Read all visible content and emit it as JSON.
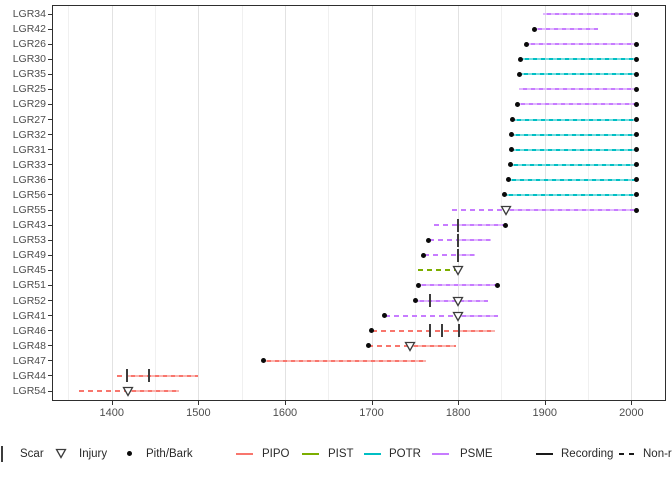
{
  "chart_data": {
    "type": "line",
    "x_axis": {
      "range": [
        1331,
        2040
      ],
      "ticks": [
        1400,
        1500,
        1600,
        1700,
        1800,
        1900,
        2000
      ],
      "tick_labels": [
        "1400",
        "1500",
        "1600",
        "1700",
        "1800",
        "1900",
        "2000"
      ],
      "minor_gridlines": [
        1350,
        1450,
        1550,
        1650,
        1750,
        1850,
        1950
      ]
    },
    "species_colors": {
      "PIPO": "#F8766D",
      "PIST": "#7CAE00",
      "POTR": "#00BFC4",
      "PSME": "#C77CFF"
    },
    "marker_colors": {
      "scar": "#3c3c3c",
      "injury_stroke": "#3c3c3c",
      "pith_bark": "#0a0a0a"
    },
    "series": [
      {
        "name": "LGR34",
        "species": "PSME",
        "segments": [
          {
            "from": 1898,
            "to": 2006,
            "type": "recording"
          }
        ],
        "scars": [],
        "injuries": [],
        "dots": [
          2006
        ]
      },
      {
        "name": "LGR42",
        "species": "PSME",
        "segments": [
          {
            "from": 1888,
            "to": 1962,
            "type": "recording"
          }
        ],
        "scars": [],
        "injuries": [],
        "dots": [
          1888
        ]
      },
      {
        "name": "LGR26",
        "species": "PSME",
        "segments": [
          {
            "from": 1879,
            "to": 2006,
            "type": "recording"
          }
        ],
        "scars": [],
        "injuries": [],
        "dots": [
          1879,
          2006
        ]
      },
      {
        "name": "LGR30",
        "species": "POTR",
        "segments": [
          {
            "from": 1872,
            "to": 2006,
            "type": "recording"
          }
        ],
        "scars": [],
        "injuries": [],
        "dots": [
          1872,
          2006
        ]
      },
      {
        "name": "LGR35",
        "species": "POTR",
        "segments": [
          {
            "from": 1871,
            "to": 2006,
            "type": "recording"
          }
        ],
        "scars": [],
        "injuries": [],
        "dots": [
          1871,
          2006
        ]
      },
      {
        "name": "LGR25",
        "species": "PSME",
        "segments": [
          {
            "from": 1870,
            "to": 2006,
            "type": "recording"
          }
        ],
        "scars": [],
        "injuries": [],
        "dots": [
          2006
        ]
      },
      {
        "name": "LGR29",
        "species": "PSME",
        "segments": [
          {
            "from": 1868,
            "to": 2006,
            "type": "recording"
          }
        ],
        "scars": [],
        "injuries": [],
        "dots": [
          1868,
          2006
        ]
      },
      {
        "name": "LGR27",
        "species": "POTR",
        "segments": [
          {
            "from": 1863,
            "to": 2006,
            "type": "recording"
          }
        ],
        "scars": [],
        "injuries": [],
        "dots": [
          1863,
          2006
        ]
      },
      {
        "name": "LGR32",
        "species": "POTR",
        "segments": [
          {
            "from": 1862,
            "to": 2006,
            "type": "recording"
          }
        ],
        "scars": [],
        "injuries": [],
        "dots": [
          1862,
          2006
        ]
      },
      {
        "name": "LGR31",
        "species": "POTR",
        "segments": [
          {
            "from": 1862,
            "to": 2006,
            "type": "recording"
          }
        ],
        "scars": [],
        "injuries": [],
        "dots": [
          1862,
          2006
        ]
      },
      {
        "name": "LGR33",
        "species": "POTR",
        "segments": [
          {
            "from": 1860,
            "to": 2006,
            "type": "recording"
          }
        ],
        "scars": [],
        "injuries": [],
        "dots": [
          1860,
          2006
        ]
      },
      {
        "name": "LGR36",
        "species": "POTR",
        "segments": [
          {
            "from": 1858,
            "to": 2006,
            "type": "recording"
          }
        ],
        "scars": [],
        "injuries": [],
        "dots": [
          1858,
          2006
        ]
      },
      {
        "name": "LGR56",
        "species": "POTR",
        "segments": [
          {
            "from": 1854,
            "to": 2006,
            "type": "recording"
          }
        ],
        "scars": [],
        "injuries": [],
        "dots": [
          1854,
          2006
        ]
      },
      {
        "name": "LGR55",
        "species": "PSME",
        "segments": [
          {
            "from": 1793,
            "to": 1855,
            "type": "non-recording"
          },
          {
            "from": 1855,
            "to": 2006,
            "type": "recording"
          }
        ],
        "scars": [],
        "injuries": [
          1855
        ],
        "dots": [
          2006
        ]
      },
      {
        "name": "LGR43",
        "species": "PSME",
        "segments": [
          {
            "from": 1772,
            "to": 1800,
            "type": "non-recording"
          },
          {
            "from": 1800,
            "to": 1855,
            "type": "recording"
          }
        ],
        "scars": [
          1800
        ],
        "injuries": [],
        "dots": [
          1855
        ]
      },
      {
        "name": "LGR53",
        "species": "PSME",
        "segments": [
          {
            "from": 1766,
            "to": 1800,
            "type": "non-recording"
          },
          {
            "from": 1800,
            "to": 1838,
            "type": "recording"
          }
        ],
        "scars": [
          1800
        ],
        "injuries": [],
        "dots": [
          1766
        ]
      },
      {
        "name": "LGR49",
        "species": "PSME",
        "segments": [
          {
            "from": 1760,
            "to": 1800,
            "type": "non-recording"
          },
          {
            "from": 1800,
            "to": 1820,
            "type": "recording"
          }
        ],
        "scars": [
          1800
        ],
        "injuries": [],
        "dots": [
          1760
        ]
      },
      {
        "name": "LGR45",
        "species": "PIST",
        "segments": [
          {
            "from": 1754,
            "to": 1800,
            "type": "non-recording"
          }
        ],
        "scars": [],
        "injuries": [
          1800
        ],
        "dots": []
      },
      {
        "name": "LGR51",
        "species": "PSME",
        "segments": [
          {
            "from": 1754,
            "to": 1846,
            "type": "recording"
          }
        ],
        "scars": [],
        "injuries": [],
        "dots": [
          1754,
          1846
        ]
      },
      {
        "name": "LGR52",
        "species": "PSME",
        "segments": [
          {
            "from": 1751,
            "to": 1835,
            "type": "recording"
          }
        ],
        "scars": [
          1767
        ],
        "injuries": [
          1800
        ],
        "dots": [
          1751
        ]
      },
      {
        "name": "LGR41",
        "species": "PSME",
        "segments": [
          {
            "from": 1715,
            "to": 1800,
            "type": "non-recording"
          },
          {
            "from": 1800,
            "to": 1846,
            "type": "recording"
          }
        ],
        "scars": [],
        "injuries": [
          1800
        ],
        "dots": [
          1715
        ]
      },
      {
        "name": "LGR46",
        "species": "PIPO",
        "segments": [
          {
            "from": 1700,
            "to": 1801,
            "type": "non-recording"
          },
          {
            "from": 1801,
            "to": 1842,
            "type": "recording"
          }
        ],
        "scars": [
          1767,
          1781,
          1801
        ],
        "injuries": [],
        "dots": [
          1700
        ]
      },
      {
        "name": "LGR48",
        "species": "PIPO",
        "segments": [
          {
            "from": 1696,
            "to": 1744,
            "type": "non-recording"
          },
          {
            "from": 1744,
            "to": 1798,
            "type": "recording"
          }
        ],
        "scars": [],
        "injuries": [
          1744
        ],
        "dots": [
          1696
        ]
      },
      {
        "name": "LGR47",
        "species": "PIPO",
        "segments": [
          {
            "from": 1575,
            "to": 1763,
            "type": "recording"
          }
        ],
        "scars": [],
        "injuries": [],
        "dots": [
          1575
        ]
      },
      {
        "name": "LGR44",
        "species": "PIPO",
        "segments": [
          {
            "from": 1406,
            "to": 1418,
            "type": "non-recording"
          },
          {
            "from": 1418,
            "to": 1500,
            "type": "recording"
          }
        ],
        "scars": [
          1418,
          1443
        ],
        "injuries": [],
        "dots": []
      },
      {
        "name": "LGR54",
        "species": "PIPO",
        "segments": [
          {
            "from": 1362,
            "to": 1419,
            "type": "non-recording"
          },
          {
            "from": 1419,
            "to": 1478,
            "type": "recording"
          }
        ],
        "scars": [],
        "injuries": [
          1419
        ],
        "dots": []
      }
    ],
    "legend_position": "bottom"
  },
  "legend": {
    "scar_label": "Scar",
    "injury_label": "Injury",
    "pith_bark_label": "Pith/Bark",
    "pipo_label": "PIPO",
    "pist_label": "PIST",
    "potr_label": "POTR",
    "psme_label": "PSME",
    "recording_label": "Recording",
    "non_recording_label": "Non-recording"
  }
}
